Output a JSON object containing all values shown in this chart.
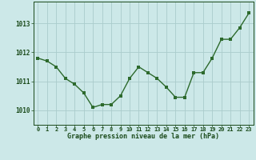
{
  "x": [
    0,
    1,
    2,
    3,
    4,
    5,
    6,
    7,
    8,
    9,
    10,
    11,
    12,
    13,
    14,
    15,
    16,
    17,
    18,
    19,
    20,
    21,
    22,
    23
  ],
  "y": [
    1011.8,
    1011.7,
    1011.5,
    1011.1,
    1010.9,
    1010.6,
    1010.1,
    1010.2,
    1010.2,
    1010.5,
    1011.1,
    1011.5,
    1011.3,
    1011.1,
    1010.8,
    1010.45,
    1010.45,
    1011.3,
    1011.3,
    1011.8,
    1012.45,
    1012.45,
    1012.85,
    1013.35
  ],
  "line_color": "#2d6a2d",
  "marker_color": "#2d6a2d",
  "bg_color": "#cce8e8",
  "grid_color": "#aacccc",
  "xlabel": "Graphe pression niveau de la mer (hPa)",
  "xlabel_color": "#1a4a1a",
  "tick_color": "#1a4a1a",
  "ylim": [
    1009.5,
    1013.75
  ],
  "yticks": [
    1010,
    1011,
    1012,
    1013
  ],
  "xticks": [
    0,
    1,
    2,
    3,
    4,
    5,
    6,
    7,
    8,
    9,
    10,
    11,
    12,
    13,
    14,
    15,
    16,
    17,
    18,
    19,
    20,
    21,
    22,
    23
  ],
  "marker_size": 2.5,
  "line_width": 1.0
}
